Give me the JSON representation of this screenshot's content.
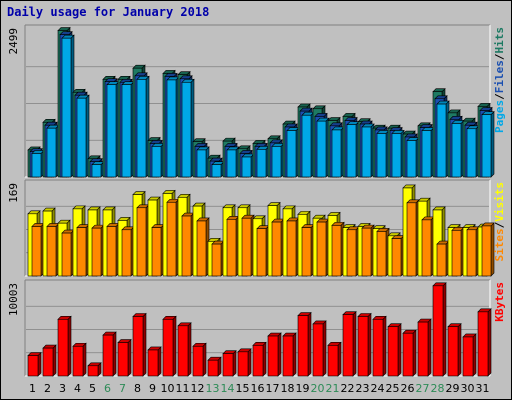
{
  "chart_data": [
    {
      "type": "bar",
      "title": "Daily usage for January 2018",
      "categories": [
        "1",
        "2",
        "3",
        "4",
        "5",
        "6",
        "7",
        "8",
        "9",
        "10",
        "11",
        "12",
        "13",
        "14",
        "15",
        "16",
        "17",
        "18",
        "19",
        "20",
        "21",
        "22",
        "23",
        "24",
        "25",
        "26",
        "27",
        "28",
        "29",
        "30",
        "31"
      ],
      "weekend_days": [
        "6",
        "7",
        "13",
        "14",
        "20",
        "21",
        "27",
        "28"
      ],
      "weekend_color": "#2e8b57",
      "ylim": [
        0,
        2499
      ],
      "y_tick_label": "2499",
      "series": [
        {
          "name": "Hits",
          "color": "#1e7a63",
          "values": [
            460,
            930,
            2490,
            1440,
            310,
            1660,
            1660,
            1850,
            620,
            1760,
            1740,
            600,
            320,
            610,
            480,
            570,
            650,
            900,
            1190,
            1160,
            960,
            1030,
            940,
            830,
            830,
            730,
            870,
            1450,
            1090,
            950,
            1200
          ]
        },
        {
          "name": "Files",
          "color": "#1a4fb0",
          "values": [
            430,
            880,
            2420,
            1390,
            260,
            1620,
            1610,
            1720,
            570,
            1710,
            1670,
            520,
            270,
            520,
            400,
            520,
            580,
            850,
            1120,
            1030,
            870,
            960,
            900,
            800,
            790,
            680,
            840,
            1330,
            980,
            880,
            1130
          ]
        },
        {
          "name": "Pages",
          "color": "#00a8e8",
          "values": [
            400,
            830,
            2360,
            1340,
            210,
            1570,
            1570,
            1660,
            520,
            1650,
            1610,
            460,
            210,
            460,
            340,
            470,
            520,
            790,
            1050,
            950,
            800,
            890,
            850,
            740,
            740,
            620,
            790,
            1240,
            910,
            820,
            1060
          ]
        }
      ],
      "legend": [
        "Pages",
        "/",
        "Files",
        "/",
        "Hits"
      ],
      "legend_colors": [
        "#00a8e8",
        "#000000",
        "#1a4fb0",
        "#000000",
        "#1e7a63"
      ]
    },
    {
      "type": "bar",
      "categories": [
        "1",
        "2",
        "3",
        "4",
        "5",
        "6",
        "7",
        "8",
        "9",
        "10",
        "11",
        "12",
        "13",
        "14",
        "15",
        "16",
        "17",
        "18",
        "19",
        "20",
        "21",
        "22",
        "23",
        "24",
        "25",
        "26",
        "27",
        "28",
        "29",
        "30",
        "31"
      ],
      "ylim": [
        0,
        169
      ],
      "y_tick_label": "169",
      "series": [
        {
          "name": "Visits",
          "color": "#ffff00",
          "values": [
            113,
            118,
            96,
            122,
            120,
            120,
            101,
            148,
            138,
            150,
            143,
            127,
            63,
            124,
            124,
            104,
            128,
            122,
            112,
            105,
            110,
            88,
            90,
            86,
            73,
            160,
            136,
            120,
            88,
            88,
            89
          ]
        },
        {
          "name": "Sites",
          "color": "#ff8800",
          "values": [
            90,
            90,
            78,
            88,
            87,
            90,
            84,
            124,
            88,
            134,
            109,
            100,
            58,
            103,
            105,
            86,
            98,
            100,
            88,
            98,
            92,
            84,
            87,
            81,
            68,
            133,
            102,
            58,
            83,
            84,
            91
          ]
        }
      ],
      "legend": [
        "Sites",
        "/",
        "Visits"
      ],
      "legend_colors": [
        "#ff8800",
        "#000000",
        "#ffff00"
      ]
    },
    {
      "type": "bar",
      "categories": [
        "1",
        "2",
        "3",
        "4",
        "5",
        "6",
        "7",
        "8",
        "9",
        "10",
        "11",
        "12",
        "13",
        "14",
        "15",
        "16",
        "17",
        "18",
        "19",
        "20",
        "21",
        "22",
        "23",
        "24",
        "25",
        "26",
        "27",
        "28",
        "29",
        "30",
        "31"
      ],
      "ylim": [
        0,
        10003
      ],
      "y_tick_label": "10003",
      "series": [
        {
          "name": "KBytes",
          "color": "#ff0000",
          "values": [
            2200,
            3000,
            6100,
            3200,
            1100,
            4400,
            3600,
            6400,
            2800,
            6100,
            5400,
            3200,
            1700,
            2400,
            2600,
            3300,
            4300,
            4300,
            6500,
            5600,
            3300,
            6600,
            6400,
            6100,
            5300,
            4600,
            5800,
            9700,
            5300,
            4200,
            6900
          ]
        }
      ],
      "legend": [
        "KBytes"
      ],
      "legend_colors": [
        "#ff0000"
      ]
    }
  ]
}
